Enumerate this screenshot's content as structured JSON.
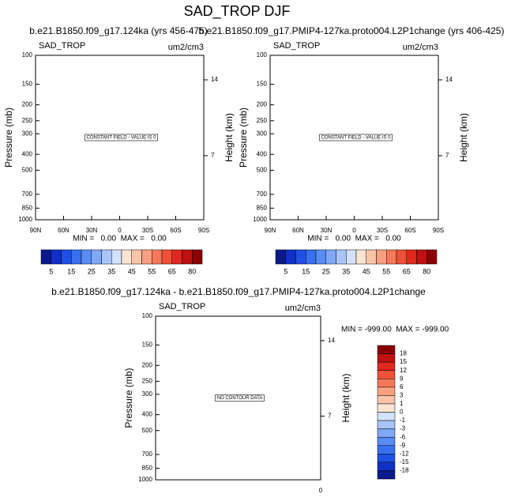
{
  "figure_title": "SAD_TROP DJF",
  "chart_data": [
    {
      "type": "contour",
      "subtitle": "b.e21.B1850.f09_g17.124ka (yrs 456-475)",
      "left_label": "SAD_TROP",
      "right_label": "um2/cm3",
      "ylabel": "Pressure (mb)",
      "y2label": "Height (km)",
      "log_y": true,
      "ylim": [
        100,
        1000
      ],
      "yticks": [
        100,
        150,
        200,
        250,
        300,
        400,
        500,
        700,
        850,
        1000
      ],
      "y2lim": [
        1.09,
        16.26
      ],
      "y2ticks": [
        14,
        7
      ],
      "xlim": [
        90,
        -90
      ],
      "xticks": [
        {
          "value": 90,
          "label": "90N"
        },
        {
          "value": 60,
          "label": "60N"
        },
        {
          "value": 30,
          "label": "30N"
        },
        0,
        {
          "value": -30,
          "label": "30S"
        },
        {
          "value": -60,
          "label": "60S"
        },
        {
          "value": -90,
          "label": "90S"
        }
      ],
      "message": "CONSTANT FIELD - VALUE IS 0",
      "stats": "MIN =   0.00  MAX =   0.00",
      "colorbar": {
        "orientation": "horizontal",
        "colors": [
          "#0a1a8c",
          "#1030c8",
          "#1e50e6",
          "#3870f0",
          "#5a8cf5",
          "#80a8f8",
          "#a8c4fa",
          "#d2e2fc",
          "#fce4d2",
          "#fac4a8",
          "#f8a080",
          "#f5785a",
          "#f05038",
          "#e0281e",
          "#c01010",
          "#8b0000"
        ],
        "labels": [
          5,
          15,
          25,
          35,
          45,
          55,
          65,
          80
        ]
      }
    },
    {
      "type": "contour",
      "subtitle": "b.e21.B1850.f09_g17.PMIP4-127ka.proto004.L2P1change (yrs 406-425)",
      "left_label": "SAD_TROP",
      "right_label": "um2/cm3",
      "ylabel": "Pressure (mb)",
      "y2label": "Height (km)",
      "log_y": true,
      "ylim": [
        100,
        1000
      ],
      "yticks": [
        100,
        150,
        200,
        250,
        300,
        400,
        500,
        700,
        850,
        1000
      ],
      "y2lim": [
        1.09,
        16.26
      ],
      "y2ticks": [
        14,
        7
      ],
      "xlim": [
        90,
        -90
      ],
      "xticks": [
        {
          "value": 90,
          "label": "90N"
        },
        {
          "value": 60,
          "label": "60N"
        },
        {
          "value": 30,
          "label": "30N"
        },
        0,
        {
          "value": -30,
          "label": "30S"
        },
        {
          "value": -60,
          "label": "60S"
        },
        {
          "value": -90,
          "label": "90S"
        }
      ],
      "message": "CONSTANT FIELD - VALUE IS 0",
      "stats": "MIN =   0.00  MAX =   0.00",
      "colorbar": {
        "orientation": "horizontal",
        "colors": [
          "#0a1a8c",
          "#1030c8",
          "#1e50e6",
          "#3870f0",
          "#5a8cf5",
          "#80a8f8",
          "#a8c4fa",
          "#d2e2fc",
          "#fce4d2",
          "#fac4a8",
          "#f8a080",
          "#f5785a",
          "#f05038",
          "#e0281e",
          "#c01010",
          "#8b0000"
        ],
        "labels": [
          5,
          15,
          25,
          35,
          45,
          55,
          65,
          80
        ]
      }
    },
    {
      "type": "contour",
      "subtitle": "b.e21.B1850.f09_g17.124ka - b.e21.B1850.f09_g17.PMIP4-127ka.proto004.L2P1change",
      "left_label": "SAD_TROP",
      "right_label": "um2/cm3",
      "ylabel": "Pressure (mb)",
      "y2label": "Height (km)",
      "log_y": true,
      "ylim": [
        100,
        1000
      ],
      "yticks": [
        100,
        150,
        200,
        250,
        300,
        400,
        500,
        700,
        850,
        1000
      ],
      "y2lim": [
        1.09,
        16.26
      ],
      "y2ticks": [
        14,
        7
      ],
      "xticks": [
        0
      ],
      "message": "NO CONTOUR DATA",
      "stats": "MIN = -999.00  MAX = -999.00",
      "colorbar": {
        "orientation": "vertical",
        "colors": [
          "#8b0000",
          "#c01010",
          "#e0281e",
          "#f05038",
          "#f5785a",
          "#f8a080",
          "#fac4a8",
          "#fce4d2",
          "#d2e2fc",
          "#a8c4fa",
          "#80a8f8",
          "#5a8cf5",
          "#3870f0",
          "#1e50e6",
          "#1030c8",
          "#0a1a8c"
        ],
        "labels": [
          18,
          15,
          12,
          9,
          6,
          3,
          1,
          0,
          -1,
          -3,
          -6,
          -9,
          -12,
          -15,
          -18
        ]
      }
    }
  ]
}
